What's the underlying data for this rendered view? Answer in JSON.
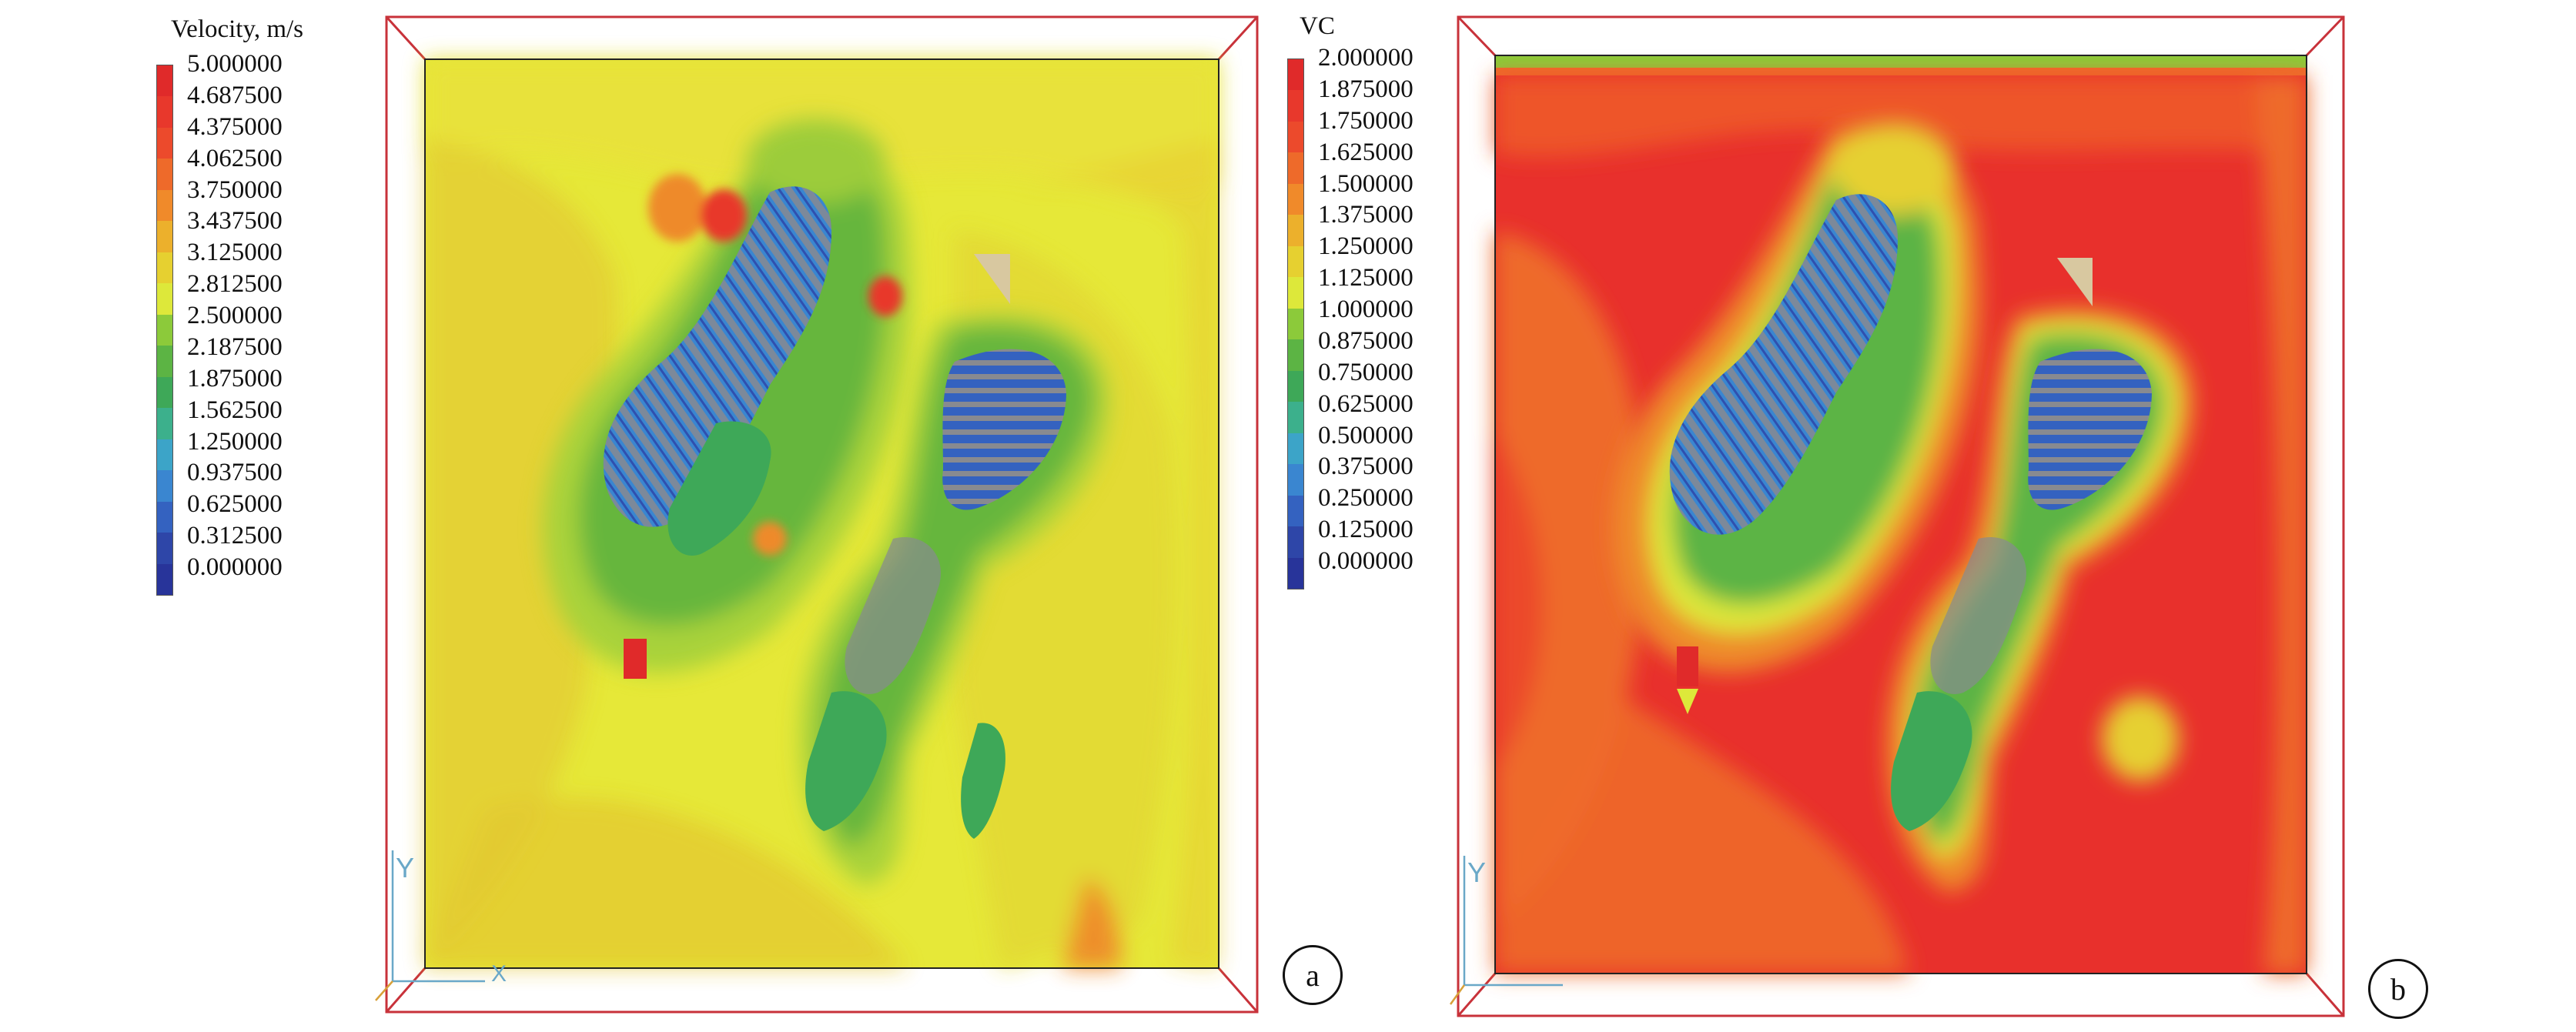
{
  "panel_a": {
    "legend": {
      "title": "Velocity, m/s",
      "labels": [
        "5.000000",
        "4.687500",
        "4.375000",
        "4.062500",
        "3.750000",
        "3.437500",
        "3.125000",
        "2.812500",
        "2.500000",
        "2.187500",
        "1.875000",
        "1.562500",
        "1.250000",
        "0.937500",
        "0.625000",
        "0.312500",
        "0.000000"
      ]
    },
    "marker": "a"
  },
  "panel_b": {
    "legend": {
      "title": "VC",
      "labels": [
        "2.000000",
        "1.875000",
        "1.750000",
        "1.625000",
        "1.500000",
        "1.375000",
        "1.250000",
        "1.125000",
        "1.000000",
        "0.875000",
        "0.750000",
        "0.625000",
        "0.500000",
        "0.375000",
        "0.250000",
        "0.125000",
        "0.000000"
      ]
    },
    "marker": "b"
  },
  "axis_labels": {
    "y": "Y",
    "x": "X"
  },
  "colors": {
    "scale": [
      "#e02a2a",
      "#e8382c",
      "#ec4a2c",
      "#ee6a2a",
      "#f08a2a",
      "#ecb02c",
      "#e6d030",
      "#dde83a",
      "#8cca3a",
      "#5cb444",
      "#3ea858",
      "#3cb08c",
      "#3ca4c8",
      "#3a86d0",
      "#3462c0",
      "#2e46a8",
      "#28349a"
    ],
    "frame": "#c8323a",
    "building": "#888a90"
  }
}
